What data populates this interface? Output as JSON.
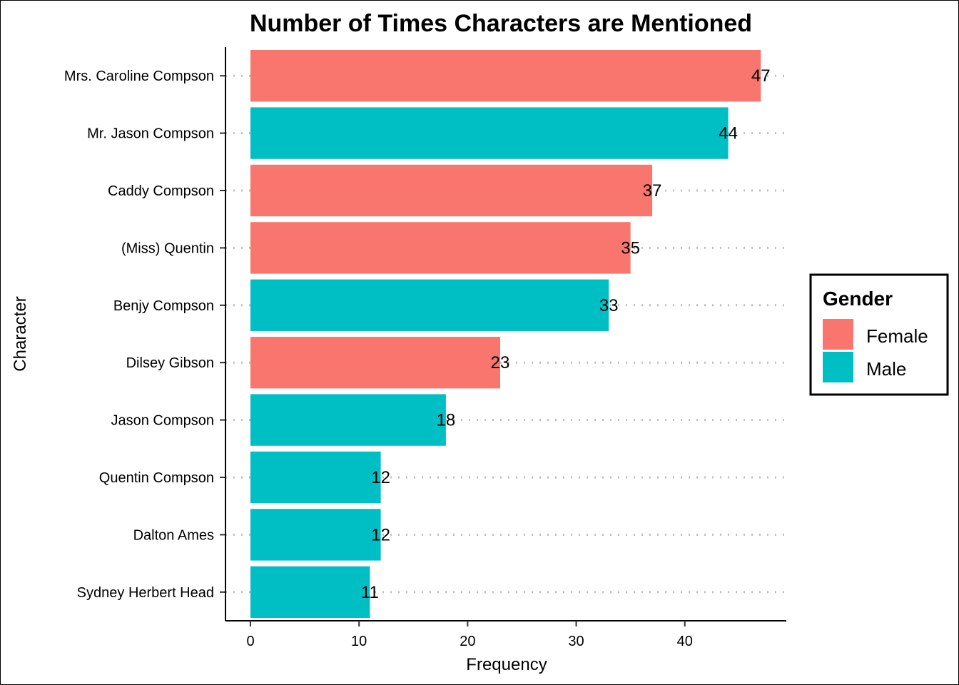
{
  "chart_data": {
    "type": "bar",
    "orientation": "horizontal",
    "title": "Number of Times Characters are Mentioned",
    "xlabel": "Frequency",
    "ylabel": "Character",
    "xlim": [
      -2.3,
      49.35
    ],
    "xticks": [
      0,
      10,
      20,
      30,
      40
    ],
    "grid": "dotted horizontal lines per category",
    "categories": [
      "Mrs. Caroline Compson",
      "Mr. Jason Compson",
      "Caddy Compson",
      "(Miss) Quentin",
      "Benjy Compson",
      "Dilsey Gibson",
      "Jason Compson",
      "Quentin Compson",
      "Dalton Ames",
      "Sydney Herbert Head"
    ],
    "values": [
      47,
      44,
      37,
      35,
      33,
      23,
      18,
      12,
      12,
      11
    ],
    "groups": [
      "Female",
      "Male",
      "Female",
      "Female",
      "Male",
      "Female",
      "Male",
      "Male",
      "Male",
      "Male"
    ],
    "legend": {
      "title": "Gender",
      "placement": "right",
      "entries": [
        {
          "name": "Female",
          "color": "#F8766D"
        },
        {
          "name": "Male",
          "color": "#00BFC4"
        }
      ]
    }
  }
}
